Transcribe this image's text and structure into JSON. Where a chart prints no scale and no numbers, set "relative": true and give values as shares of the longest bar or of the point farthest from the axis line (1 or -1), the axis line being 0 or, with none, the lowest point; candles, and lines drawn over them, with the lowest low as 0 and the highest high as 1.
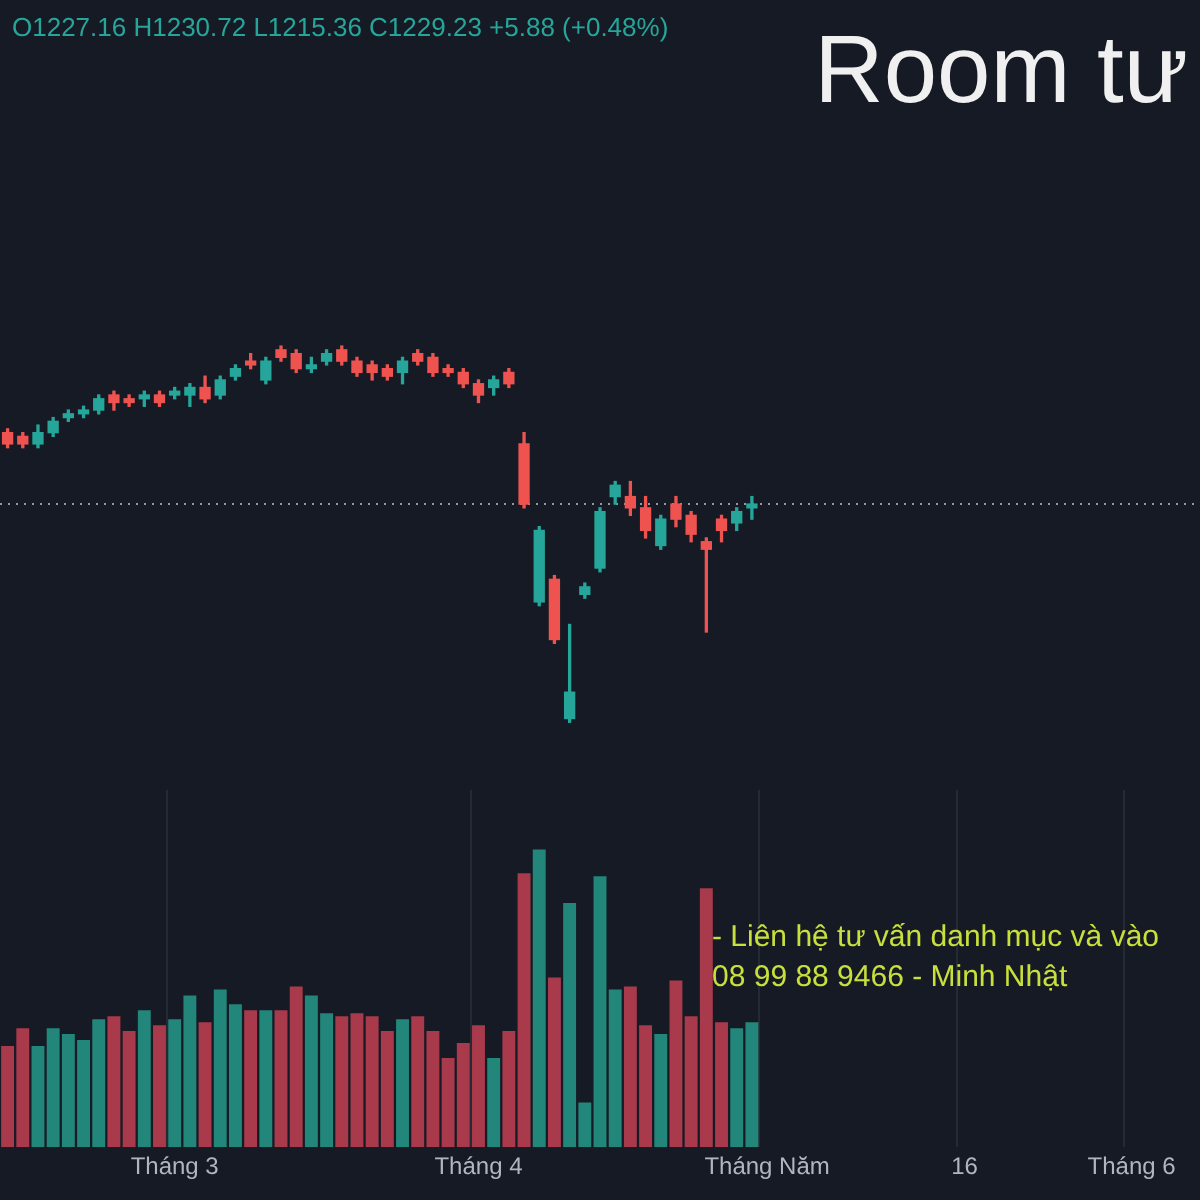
{
  "chart_data": [
    {
      "type": "candlestick",
      "title": "Room tư",
      "relative": true,
      "legend": false,
      "grid": "x",
      "tick_labels": false,
      "annotations": [
        "O1227.16 H1230.72 L1215.36 C1229.23 +5.88 (+0.48%)"
      ],
      "categories": [
        null,
        null,
        null,
        null,
        null,
        null,
        null,
        null,
        null,
        null,
        null,
        null,
        null,
        null,
        null,
        null,
        null,
        null,
        null,
        null,
        null,
        null,
        null,
        null,
        null,
        null,
        null,
        null,
        null,
        null,
        null,
        null,
        null,
        null,
        null,
        null,
        null,
        null,
        null,
        null,
        null,
        null,
        null,
        null,
        null,
        null,
        null,
        null,
        null,
        null,
        null,
        null,
        null,
        null,
        null,
        null,
        null,
        null,
        null,
        null,
        null,
        null,
        null,
        null,
        null,
        null,
        null,
        null,
        null,
        null,
        null,
        null,
        null,
        null,
        null,
        null,
        null,
        null,
        null
      ],
      "ohlc": [
        [
          0.77,
          0.78,
          0.73,
          0.74
        ],
        [
          0.76,
          0.77,
          0.73,
          0.74
        ],
        [
          0.74,
          0.79,
          0.73,
          0.77
        ],
        [
          0.77,
          0.81,
          0.76,
          0.8
        ],
        [
          0.81,
          0.83,
          0.8,
          0.82
        ],
        [
          0.82,
          0.84,
          0.81,
          0.83
        ],
        [
          0.83,
          0.87,
          0.82,
          0.86
        ],
        [
          0.87,
          0.88,
          0.83,
          0.85
        ],
        [
          0.86,
          0.87,
          0.84,
          0.85
        ],
        [
          0.86,
          0.88,
          0.84,
          0.87
        ],
        [
          0.87,
          0.88,
          0.84,
          0.85
        ],
        [
          0.87,
          0.89,
          0.86,
          0.88
        ],
        [
          0.87,
          0.9,
          0.84,
          0.89
        ],
        [
          0.89,
          0.92,
          0.85,
          0.86
        ],
        [
          0.87,
          0.92,
          0.86,
          0.91
        ],
        [
          0.92,
          0.95,
          0.91,
          0.94
        ],
        [
          0.96,
          0.98,
          0.94,
          0.95
        ],
        [
          0.91,
          0.97,
          0.9,
          0.96
        ],
        [
          0.99,
          1,
          0.96,
          0.97
        ],
        [
          0.98,
          0.99,
          0.93,
          0.94
        ],
        [
          0.94,
          0.97,
          0.93,
          0.95
        ],
        [
          0.96,
          0.99,
          0.95,
          0.98
        ],
        [
          0.99,
          1,
          0.95,
          0.96
        ],
        [
          0.96,
          0.97,
          0.92,
          0.93
        ],
        [
          0.95,
          0.96,
          0.91,
          0.93
        ],
        [
          0.94,
          0.95,
          0.91,
          0.92
        ],
        [
          0.93,
          0.97,
          0.9,
          0.96
        ],
        [
          0.98,
          0.99,
          0.95,
          0.96
        ],
        [
          0.97,
          0.98,
          0.92,
          0.93
        ],
        [
          0.94,
          0.95,
          0.92,
          0.93
        ],
        [
          0.93,
          0.94,
          0.89,
          0.9
        ],
        [
          0.9,
          0.91,
          0.85,
          0.87
        ],
        [
          0.89,
          0.92,
          0.87,
          0.91
        ],
        [
          0.93,
          0.94,
          0.89,
          0.9
        ],
        [
          0.74,
          0.77,
          0.57,
          0.58
        ],
        [
          0.32,
          0.52,
          0.31,
          0.51
        ],
        [
          0.38,
          0.39,
          0.21,
          0.22
        ],
        [
          0.01,
          0.26,
          0,
          0.08
        ],
        [
          0.34,
          0.37,
          0.33,
          0.36
        ],
        [
          0.41,
          0.57,
          0.4,
          0.56
        ],
        [
          0.6,
          0.64,
          0.58,
          0.63
        ],
        [
          0.6,
          0.64,
          0.55,
          0.57
        ],
        [
          0.57,
          0.6,
          0.49,
          0.51
        ],
        [
          0.47,
          0.55,
          0.46,
          0.54
        ],
        [
          0.58,
          0.6,
          0.52,
          0.54
        ],
        [
          0.55,
          0.56,
          0.48,
          0.5
        ],
        [
          0.48,
          0.49,
          0.24,
          0.46
        ],
        [
          0.54,
          0.55,
          0.48,
          0.51
        ],
        [
          0.53,
          0.57,
          0.51,
          0.56
        ],
        [
          0.57,
          0.6,
          0.54,
          0.58
        ],
        null,
        null,
        null,
        null,
        null,
        null,
        null,
        null,
        null,
        null,
        null,
        null,
        null,
        null,
        null,
        null,
        null,
        null,
        null,
        null,
        null,
        null,
        null,
        null,
        null,
        null,
        null,
        null,
        null
      ],
      "colors": [
        "#ef5350",
        "#ef5350",
        "#26a69a",
        "#26a69a",
        "#26a69a",
        "#26a69a",
        "#26a69a",
        "#ef5350",
        "#ef5350",
        "#26a69a",
        "#ef5350",
        "#26a69a",
        "#26a69a",
        "#ef5350",
        "#26a69a",
        "#26a69a",
        "#ef5350",
        "#26a69a",
        "#ef5350",
        "#ef5350",
        "#26a69a",
        "#26a69a",
        "#ef5350",
        "#ef5350",
        "#ef5350",
        "#ef5350",
        "#26a69a",
        "#ef5350",
        "#ef5350",
        "#ef5350",
        "#ef5350",
        "#ef5350",
        "#26a69a",
        "#ef5350",
        "#ef5350",
        "#26a69a",
        "#ef5350",
        "#26a69a",
        "#26a69a",
        "#26a69a",
        "#26a69a",
        "#ef5350",
        "#ef5350",
        "#26a69a",
        "#ef5350",
        "#ef5350",
        "#ef5350",
        "#ef5350",
        "#26a69a",
        "#26a69a",
        null,
        null,
        null,
        null,
        null,
        null,
        null,
        null,
        null,
        null,
        null,
        null,
        null,
        null,
        null,
        null,
        null,
        null,
        null,
        null,
        null,
        null,
        null,
        null,
        null,
        null,
        null,
        null,
        null
      ],
      "ref_lines": [
        {
          "axis": "y",
          "value": 0.58,
          "line_style": "dotted",
          "color": "#9598a1"
        }
      ]
    },
    {
      "type": "bar",
      "relative": true,
      "legend": false,
      "grid": "x",
      "annotations": [
        "- Liên hệ tư vấn danh mục và vào",
        "08 99 88 9466 - Minh Nhật"
      ],
      "categories": [
        null,
        null,
        null,
        null,
        null,
        null,
        null,
        null,
        null,
        null,
        null,
        "Tháng 3",
        null,
        null,
        null,
        null,
        null,
        null,
        null,
        null,
        null,
        null,
        null,
        null,
        null,
        null,
        null,
        null,
        null,
        null,
        null,
        "Tháng 4",
        null,
        null,
        null,
        null,
        null,
        null,
        null,
        null,
        null,
        null,
        null,
        null,
        null,
        null,
        null,
        null,
        null,
        null,
        "Tháng Năm",
        null,
        null,
        null,
        null,
        null,
        null,
        null,
        null,
        null,
        null,
        null,
        null,
        "16",
        null,
        null,
        null,
        null,
        null,
        null,
        null,
        null,
        null,
        null,
        "Tháng 6",
        null,
        null,
        null,
        null
      ],
      "values": [
        0.34,
        0.4,
        0.34,
        0.4,
        0.38,
        0.36,
        0.43,
        0.44,
        0.39,
        0.46,
        0.41,
        0.43,
        0.51,
        0.42,
        0.53,
        0.48,
        0.46,
        0.46,
        0.46,
        0.54,
        0.51,
        0.45,
        0.44,
        0.45,
        0.44,
        0.39,
        0.43,
        0.44,
        0.39,
        0.3,
        0.35,
        0.41,
        0.3,
        0.39,
        0.92,
        1,
        0.57,
        0.82,
        0.15,
        0.91,
        0.53,
        0.54,
        0.41,
        0.38,
        0.56,
        0.44,
        0.87,
        0.42,
        0.4,
        0.42,
        null,
        null,
        null,
        null,
        null,
        null,
        null,
        null,
        null,
        null,
        null,
        null,
        null,
        null,
        null,
        null,
        null,
        null,
        null,
        null,
        null,
        null,
        null,
        null,
        null,
        null,
        null,
        null,
        null
      ],
      "colors": [
        "#a93a4b",
        "#a93a4b",
        "#22867a",
        "#22867a",
        "#22867a",
        "#22867a",
        "#22867a",
        "#a93a4b",
        "#a93a4b",
        "#22867a",
        "#a93a4b",
        "#22867a",
        "#22867a",
        "#a93a4b",
        "#22867a",
        "#22867a",
        "#a93a4b",
        "#22867a",
        "#a93a4b",
        "#a93a4b",
        "#22867a",
        "#22867a",
        "#a93a4b",
        "#a93a4b",
        "#a93a4b",
        "#a93a4b",
        "#22867a",
        "#a93a4b",
        "#a93a4b",
        "#a93a4b",
        "#a93a4b",
        "#a93a4b",
        "#22867a",
        "#a93a4b",
        "#a93a4b",
        "#22867a",
        "#a93a4b",
        "#22867a",
        "#22867a",
        "#22867a",
        "#22867a",
        "#a93a4b",
        "#a93a4b",
        "#22867a",
        "#a93a4b",
        "#a93a4b",
        "#a93a4b",
        "#a93a4b",
        "#22867a",
        "#22867a",
        null,
        null,
        null,
        null,
        null,
        null,
        null,
        null,
        null,
        null,
        null,
        null,
        null,
        null,
        null,
        null,
        null,
        null,
        null,
        null,
        null,
        null,
        null,
        null,
        null,
        null,
        null,
        null,
        null
      ]
    }
  ]
}
